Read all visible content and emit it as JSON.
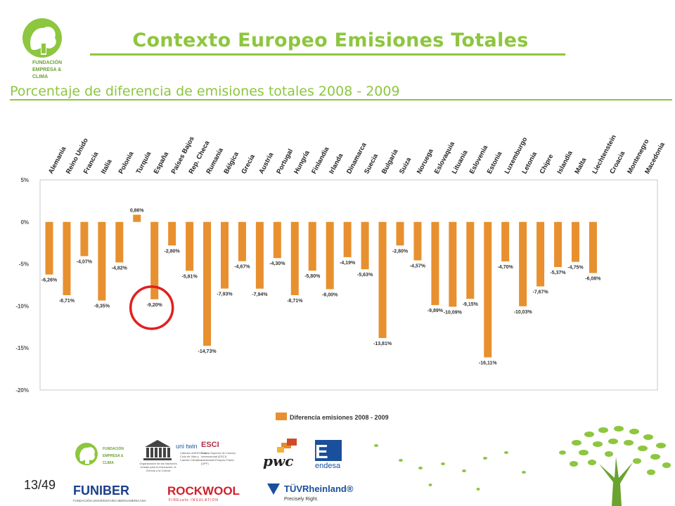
{
  "header": {
    "title": "Contexto Europeo Emisiones Totales",
    "subtitle": "Porcentaje de diferencia de emisiones totales 2008 - 2009",
    "org_logo_text": [
      "FUNDACIÓN",
      "EMPRESA &",
      "CLIMA"
    ]
  },
  "colors": {
    "accent": "#8dc63f",
    "bar": "#e8902f",
    "highlight": "#e02020"
  },
  "chart_data": {
    "type": "bar",
    "categories": [
      "Alemania",
      "Reino Unido",
      "Francia",
      "Italia",
      "Polonia",
      "Turquía",
      "España",
      "Países Bajos",
      "Rep. Checa",
      "Rumanía",
      "Bélgica",
      "Grecia",
      "Austria",
      "Portugal",
      "Hungría",
      "Finlandia",
      "Irlanda",
      "Dinamarca",
      "Suecia",
      "Bulgaria",
      "Suiza",
      "Noruega",
      "Eslovaquia",
      "Lituania",
      "Eslovenia",
      "Estonia",
      "Luxemburgo",
      "Letonia",
      "Chipre",
      "Islandia",
      "Malta",
      "Liechtenstein",
      "Croacia",
      "Montenegro",
      "Macedonia"
    ],
    "series": [
      {
        "name": "Diferencia emisiones 2008 - 2009",
        "values": [
          -6.26,
          -8.71,
          -4.07,
          -9.35,
          -4.82,
          0.86,
          -9.2,
          -2.8,
          -5.81,
          -14.73,
          -7.93,
          -4.67,
          -7.94,
          -4.3,
          -8.71,
          -5.8,
          -8.0,
          -4.19,
          -5.63,
          -13.81,
          -2.8,
          -4.57,
          -9.89,
          -10.09,
          -9.15,
          -16.11,
          -4.7,
          -10.03,
          -7.67,
          -5.37,
          -4.75,
          -6.08,
          null,
          null,
          null
        ],
        "labels": [
          "-6,26%",
          "-8,71%",
          "-4,07%",
          "-9,35%",
          "-4,82%",
          "0,86%",
          "-9,20%",
          "-2,80%",
          "-5,81%",
          "-14,73%",
          "-7,93%",
          "-4,67%",
          "-7,94%",
          "-4,30%",
          "-8,71%",
          "-5,80%",
          "-8,00%",
          "-4,19%",
          "-5,63%",
          "-13,81%",
          "-2,80%",
          "-4,57%",
          "-9,89%",
          "-10,09%",
          "-9,15%",
          "-16,11%",
          "-4,70%",
          "-10,03%",
          "-7,67%",
          "-5,37%",
          "-4,75%",
          "-6,08%",
          "",
          "",
          ""
        ]
      }
    ],
    "yticks": [
      "5%",
      "0%",
      "-5%",
      "-10%",
      "-15%",
      "-20%"
    ],
    "ytick_values": [
      5,
      0,
      -5,
      -10,
      -15,
      -20
    ],
    "ylim": [
      -20,
      5
    ],
    "grid": false,
    "legend_position": "bottom-center",
    "highlighted_category": "España"
  },
  "footer": {
    "page_number": "13/49",
    "partners": {
      "unesco_text": "Organización de las Naciones Unidas para la Educación, la Ciencia y la Cultura",
      "unitwin": "uni twin",
      "unitwin_text": "Cátedra UNESCO de Ciclo de Vida y Cambio Climático",
      "esci": "ESCI",
      "esci_text": "Escola Superior de Comerç Internacional (ESCI) Universitat Pompeu Fabra (UPF)",
      "pwc": "pwc",
      "endesa": "endesa",
      "funiber": "FUNIBER",
      "funiber_text": "FUNDACIÓN UNIVERSITARIA IBEROAMERICANA",
      "rockwool": "ROCKWOOL",
      "rockwool_text": "FIREsafe INSULATION",
      "tuv": "TÜVRheinland®",
      "tuv_text": "Precisely Right."
    }
  }
}
